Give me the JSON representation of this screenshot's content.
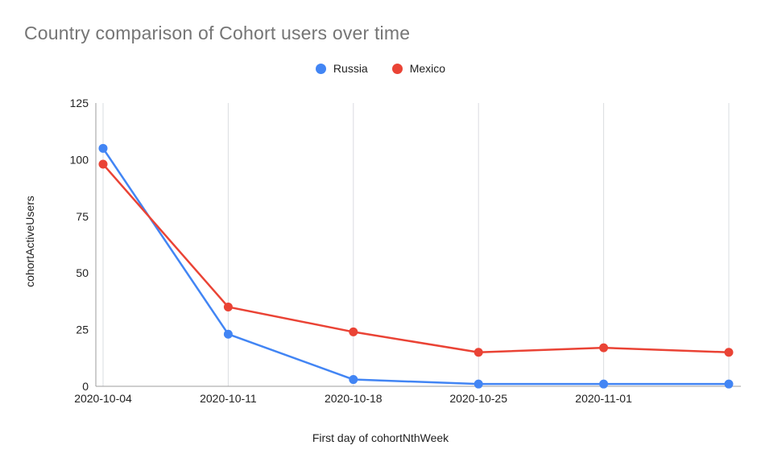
{
  "chart_data": {
    "type": "line",
    "title": "Country comparison of Cohort users over time",
    "xlabel": "First day of cohortNthWeek",
    "ylabel": "cohortActiveUsers",
    "categories": [
      "2020-10-04",
      "2020-10-11",
      "2020-10-18",
      "2020-10-25",
      "2020-11-01",
      ""
    ],
    "series": [
      {
        "name": "Russia",
        "color": "#4285F4",
        "values": [
          105,
          23,
          3,
          1,
          1,
          1
        ]
      },
      {
        "name": "Mexico",
        "color": "#EA4335",
        "values": [
          98,
          35,
          24,
          15,
          17,
          15
        ]
      }
    ],
    "ylim": [
      0,
      125
    ],
    "yticks": [
      0,
      25,
      50,
      75,
      100,
      125
    ],
    "grid": "vertical",
    "legend_position": "top-center",
    "colors": {
      "title_text": "#757575",
      "axis_text": "#212121",
      "gridline": "#dadce0",
      "axis_line": "#9e9e9e",
      "background": "#ffffff"
    }
  }
}
